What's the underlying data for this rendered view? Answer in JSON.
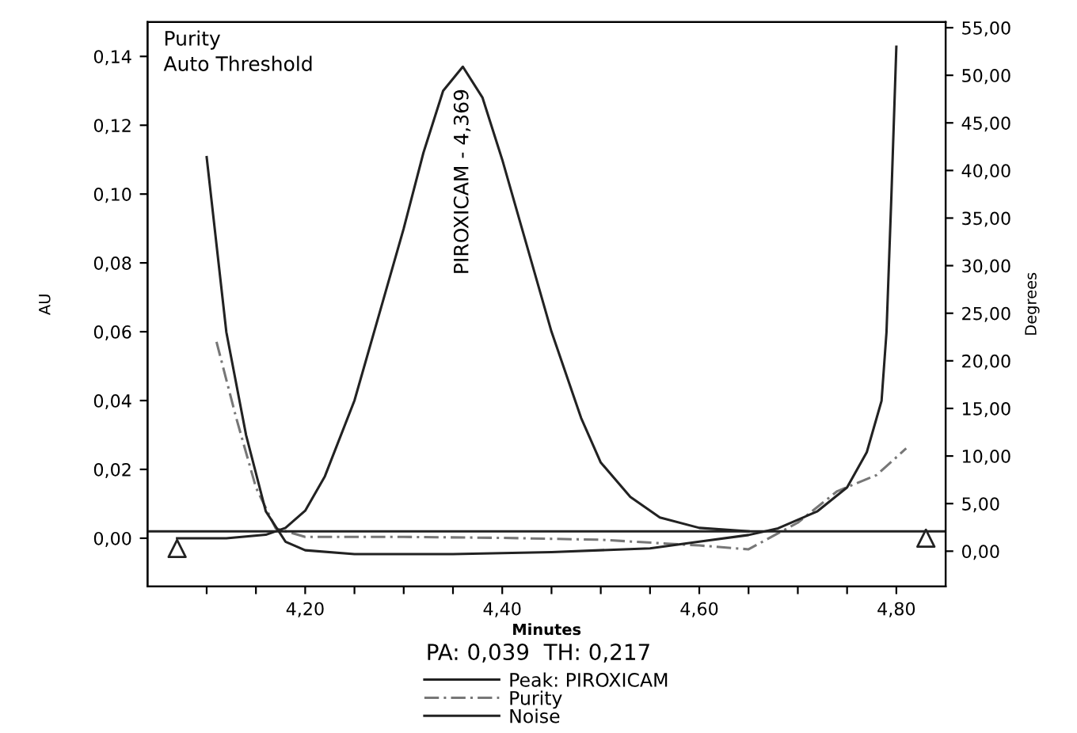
{
  "chart_data": {
    "type": "line",
    "xlabel": "Minutes",
    "ylabel": "AU",
    "y2label": "Degrees",
    "xlim": [
      4.04,
      4.85
    ],
    "ylim": [
      -0.014,
      0.15
    ],
    "y2lim": [
      -3.7,
      55.6
    ],
    "xticks": [
      {
        "value": 4.1,
        "label": null
      },
      {
        "value": 4.15,
        "label": null
      },
      {
        "value": 4.2,
        "label": "4,20"
      },
      {
        "value": 4.25,
        "label": null
      },
      {
        "value": 4.3,
        "label": null
      },
      {
        "value": 4.35,
        "label": null
      },
      {
        "value": 4.4,
        "label": "4,40"
      },
      {
        "value": 4.45,
        "label": null
      },
      {
        "value": 4.5,
        "label": null
      },
      {
        "value": 4.55,
        "label": null
      },
      {
        "value": 4.6,
        "label": "4,60"
      },
      {
        "value": 4.65,
        "label": null
      },
      {
        "value": 4.7,
        "label": null
      },
      {
        "value": 4.75,
        "label": null
      },
      {
        "value": 4.8,
        "label": "4,80"
      }
    ],
    "yticks": [
      {
        "value": 0,
        "label": "0,00"
      },
      {
        "value": 0.02,
        "label": "0,02"
      },
      {
        "value": 0.04,
        "label": "0,04"
      },
      {
        "value": 0.06,
        "label": "0,06"
      },
      {
        "value": 0.08,
        "label": "0,08"
      },
      {
        "value": 0.1,
        "label": "0,10"
      },
      {
        "value": 0.12,
        "label": "0,12"
      },
      {
        "value": 0.14,
        "label": "0,14"
      }
    ],
    "y2ticks": [
      {
        "value": 0,
        "label": "0,00"
      },
      {
        "value": 5,
        "label": "5,00"
      },
      {
        "value": 10,
        "label": "10,00"
      },
      {
        "value": 15,
        "label": "15,00"
      },
      {
        "value": 20,
        "label": "20,00"
      },
      {
        "value": 25,
        "label": "25,00"
      },
      {
        "value": 30,
        "label": "30,00"
      },
      {
        "value": 35,
        "label": "35,00"
      },
      {
        "value": 40,
        "label": "40,00"
      },
      {
        "value": 45,
        "label": "45,00"
      },
      {
        "value": 50,
        "label": "50,00"
      },
      {
        "value": 55,
        "label": "55,00"
      }
    ],
    "grid": false,
    "legend": "bottom",
    "series": [
      {
        "name": "Peak: PIROXICAM",
        "color": "#222222",
        "line_style": "solid",
        "x": [
          4.07,
          4.12,
          4.16,
          4.18,
          4.2,
          4.22,
          4.25,
          4.28,
          4.3,
          4.32,
          4.34,
          4.36,
          4.38,
          4.4,
          4.42,
          4.45,
          4.48,
          4.5,
          4.53,
          4.56,
          4.6,
          4.65
        ],
        "values": [
          0.0,
          0.0,
          0.001,
          0.003,
          0.008,
          0.018,
          0.04,
          0.07,
          0.09,
          0.112,
          0.13,
          0.137,
          0.128,
          0.11,
          0.09,
          0.06,
          0.035,
          0.022,
          0.012,
          0.006,
          0.003,
          0.002
        ]
      },
      {
        "name": "Purity",
        "color": "#777777",
        "line_style": "dashed",
        "axis": "y2",
        "x": [
          4.11,
          4.13,
          4.15,
          4.17,
          4.2,
          4.3,
          4.4,
          4.5,
          4.6,
          4.65,
          4.7,
          4.74,
          4.78,
          4.81
        ],
        "values": [
          22,
          14,
          6.7,
          2.4,
          1.5,
          1.5,
          1.4,
          1.2,
          0.6,
          0.2,
          3,
          6.3,
          8,
          10.8
        ]
      },
      {
        "name": "Noise",
        "color": "#222222",
        "line_style": "solid",
        "axis": "y2",
        "x": [
          4.1,
          4.12,
          4.14,
          4.16,
          4.18,
          4.2,
          4.25,
          4.35,
          4.45,
          4.55,
          4.6,
          4.65,
          4.68,
          4.72,
          4.75,
          4.77,
          4.785,
          4.79,
          4.795,
          4.8
        ],
        "values": [
          41.4,
          23,
          12.2,
          4.2,
          1.0,
          0.1,
          -0.3,
          -0.3,
          -0.1,
          0.3,
          1.0,
          1.7,
          2.4,
          4.2,
          6.7,
          10.4,
          15.8,
          23,
          37.4,
          53
        ]
      },
      {
        "type": "scatter",
        "marker": "triangle",
        "color": "#222222",
        "x": [
          4.07,
          4.83
        ],
        "values": [
          -0.003,
          0.0
        ]
      }
    ],
    "ref_lines": [
      {
        "axis": "y",
        "value": 0.002,
        "color": "#222222"
      }
    ],
    "annotations": [
      "Purity",
      "Auto Threshold",
      {
        "text": "PIROXICAM - 4,369",
        "x": 4.36,
        "y": 0.137
      },
      "PA: 0,039  TH: 0,217"
    ]
  }
}
